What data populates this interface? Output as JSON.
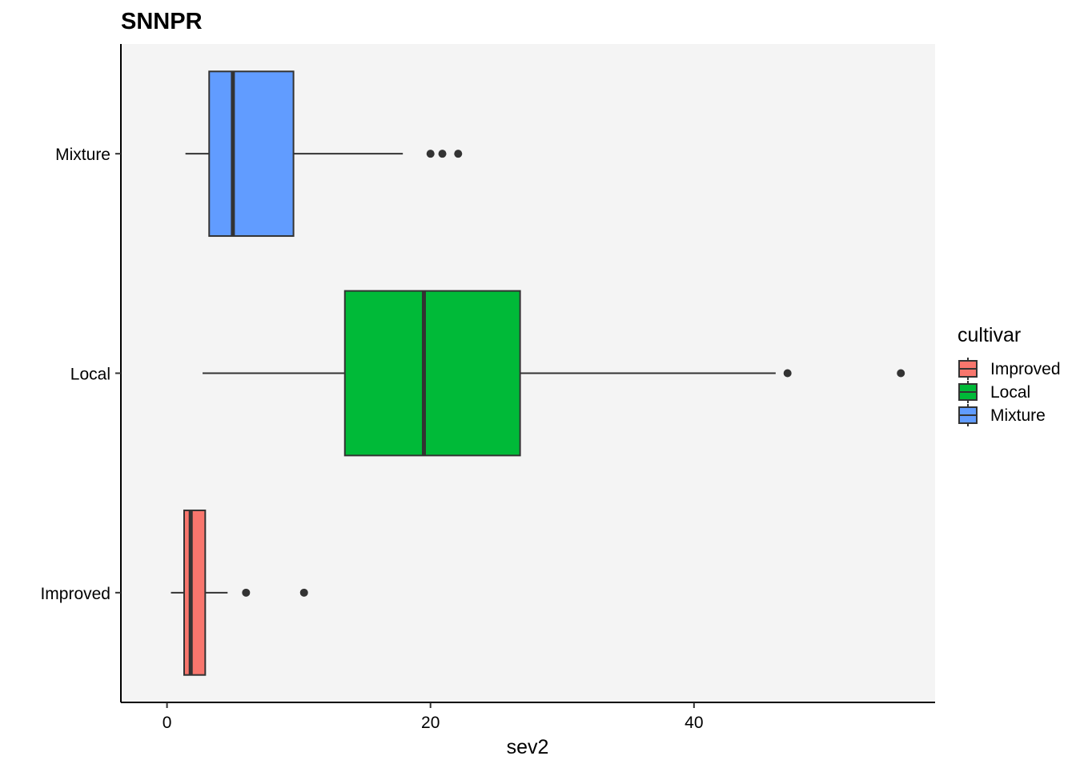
{
  "chart_data": {
    "type": "boxplot",
    "orientation": "horizontal",
    "title": "SNNPR",
    "xlabel": "sev2",
    "ylabel": "",
    "xlim": [
      -3.5,
      58.3
    ],
    "x_ticks": [
      0,
      20,
      40
    ],
    "categories": [
      "Improved",
      "Local",
      "Mixture"
    ],
    "grid": false,
    "panel_background": "#f4f4f4",
    "legend": {
      "title": "cultivar",
      "position": "right",
      "entries": [
        "Improved",
        "Local",
        "Mixture"
      ]
    },
    "series": [
      {
        "category": "Improved",
        "color": "#F8766D",
        "whisker_low": 0.3,
        "q1": 1.3,
        "median": 1.8,
        "q3": 2.9,
        "whisker_high": 4.6,
        "outliers": [
          6.0,
          10.4
        ]
      },
      {
        "category": "Local",
        "color": "#00BA38",
        "whisker_low": 2.7,
        "q1": 13.5,
        "median": 19.5,
        "q3": 26.8,
        "whisker_high": 46.2,
        "outliers": [
          47.1,
          55.7
        ]
      },
      {
        "category": "Mixture",
        "color": "#619CFF",
        "whisker_low": 1.4,
        "q1": 3.2,
        "median": 5.0,
        "q3": 9.6,
        "whisker_high": 17.9,
        "outliers": [
          20.0,
          20.9,
          22.1
        ]
      }
    ]
  }
}
